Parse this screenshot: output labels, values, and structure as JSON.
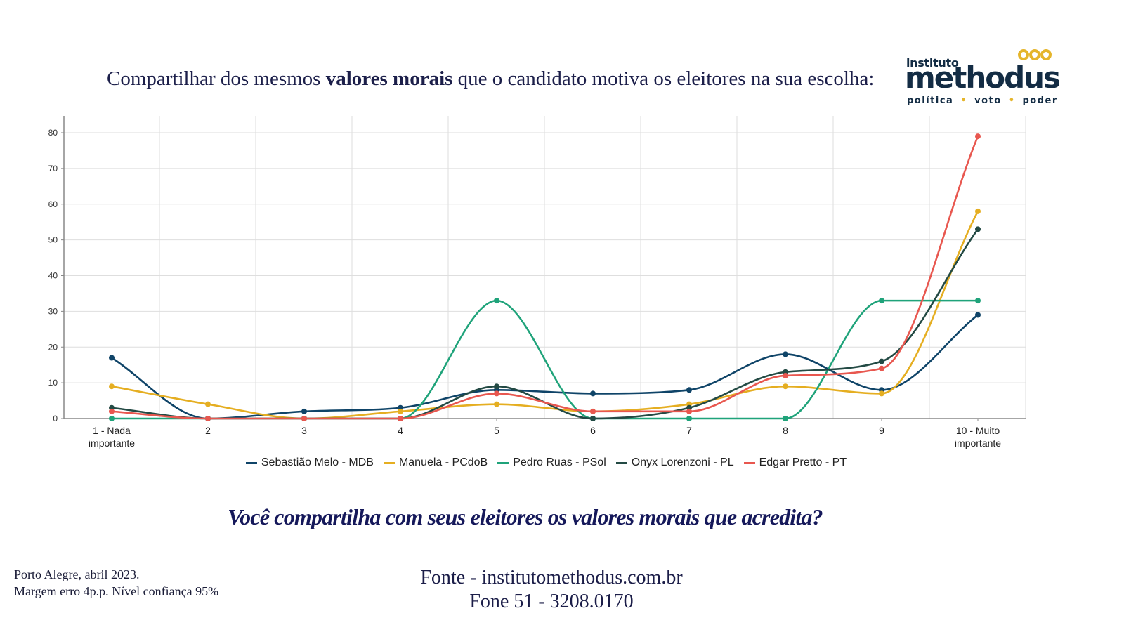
{
  "header": {
    "title_pre": "Compartilhar dos mesmos ",
    "title_bold": "valores morais",
    "title_post": " que o candidato motiva os eleitores na sua escolha:"
  },
  "logo": {
    "line1": "instituto",
    "line2": "methodus",
    "tag1": "política",
    "tag2": "voto",
    "tag3": "poder",
    "accent": "#e5b52b",
    "color": "#132c44"
  },
  "chart_data": {
    "type": "line",
    "title": "Compartilhar dos mesmos valores morais que o candidato motiva os eleitores na sua escolha:",
    "xlabel": "",
    "ylabel": "",
    "ylim": [
      0,
      80
    ],
    "yticks": [
      0,
      10,
      20,
      30,
      40,
      50,
      60,
      70,
      80
    ],
    "grid": true,
    "smooth": true,
    "legend_position": "bottom",
    "categories": [
      "1 - Nada importante",
      "2",
      "3",
      "4",
      "5",
      "6",
      "7",
      "8",
      "9",
      "10 - Muito importante"
    ],
    "category_lines": [
      [
        "1 - Nada",
        "importante"
      ],
      [
        "2"
      ],
      [
        "3"
      ],
      [
        "4"
      ],
      [
        "5"
      ],
      [
        "6"
      ],
      [
        "7"
      ],
      [
        "8"
      ],
      [
        "9"
      ],
      [
        "10 - Muito",
        "importante"
      ]
    ],
    "series": [
      {
        "name": "Sebastião Melo - MDB",
        "color": "#0f4468",
        "values": [
          17,
          0,
          2,
          3,
          8,
          7,
          8,
          18,
          8,
          29
        ]
      },
      {
        "name": "Manuela - PCdoB",
        "color": "#e5ae21",
        "values": [
          9,
          4,
          0,
          2,
          4,
          2,
          4,
          9,
          7,
          58
        ]
      },
      {
        "name": "Pedro Ruas - PSol",
        "color": "#1fa37a",
        "values": [
          0,
          0,
          0,
          0,
          33,
          0,
          0,
          0,
          33,
          33
        ]
      },
      {
        "name": "Onyx Lorenzoni - PL",
        "color": "#234a44",
        "values": [
          3,
          0,
          0,
          0,
          9,
          0,
          3,
          13,
          16,
          53
        ]
      },
      {
        "name": "Edgar Pretto - PT",
        "color": "#e8574f",
        "values": [
          2,
          0,
          0,
          0,
          7,
          2,
          2,
          12,
          14,
          79
        ]
      }
    ]
  },
  "question": "Você compartilha com seus eleitores os valores morais que acredita?",
  "footer": {
    "location_date": "Porto Alegre, abril 2023.",
    "margin": "Margem erro 4p.p. Nível confiança 95%",
    "source": "Fonte - institutomethodus.com.br",
    "phone": "Fone 51 - 3208.0170"
  }
}
